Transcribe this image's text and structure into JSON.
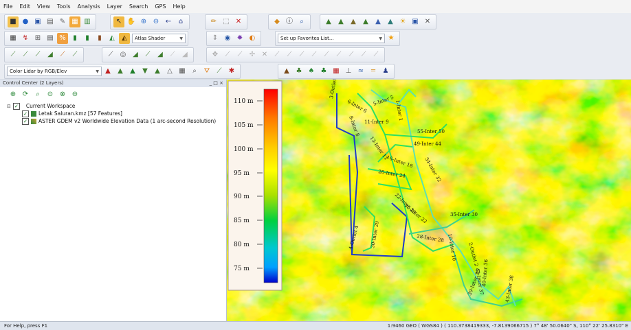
{
  "menu": [
    "File",
    "Edit",
    "View",
    "Tools",
    "Analysis",
    "Layer",
    "Search",
    "GPS",
    "Help"
  ],
  "toolbar": {
    "shader_select": "Atlas Shader",
    "favorites_select": "Set up Favorites List...",
    "color_select": "Color Lidar by RGB/Elev"
  },
  "control_center": {
    "title": "Control Center (2 Layers)",
    "window_buttons": "_ □ ×",
    "workspace_label": "Current Workspace",
    "layers": [
      {
        "label": "Letak Saluran.kmz [57 Features]",
        "checked": true
      },
      {
        "label": "ASTER GDEM v2 Worldwide Elevation Data (1 arc-second Resolution)",
        "checked": true
      }
    ]
  },
  "legend": {
    "labels": [
      "110 m",
      "105 m",
      "100 m",
      "95 m",
      "90 m",
      "85 m",
      "80 m",
      "75 m"
    ],
    "colors": [
      "#ff0000",
      "#ff8c00",
      "#ffd700",
      "#ffff00",
      "#a0e000",
      "#00d040",
      "#00c8d0",
      "#00a0ff",
      "#0000cc"
    ]
  },
  "map_labels": [
    "3-Outlet 3",
    "6-Inter 6",
    "5-Inter 5",
    "1-Inter 1",
    "11-Inter 9",
    "55-Inter 50",
    "8-Inter 8",
    "13-Inter 11",
    "49-Inter 44",
    "16-Inter 18",
    "34-Inter 32",
    "26-Inter 24",
    "22-Inter 20",
    "25-Inter 22",
    "35-Inter 30",
    "28-Inter 28",
    "10-Inter 10",
    "30-Inter 29",
    "4-Outlet 4",
    "2-Outlet 2",
    "39-Inter 35",
    "43-Inter 38",
    "40-Inter 36",
    "42-Inter 37"
  ],
  "status": {
    "left": "For Help, press F1",
    "right": "1:9460  GEO ( WGS84 ) ( 110.3738419333, -7.8139066715 ) 7° 48' 50.0640\" S, 110° 22' 25.8310\" E"
  }
}
